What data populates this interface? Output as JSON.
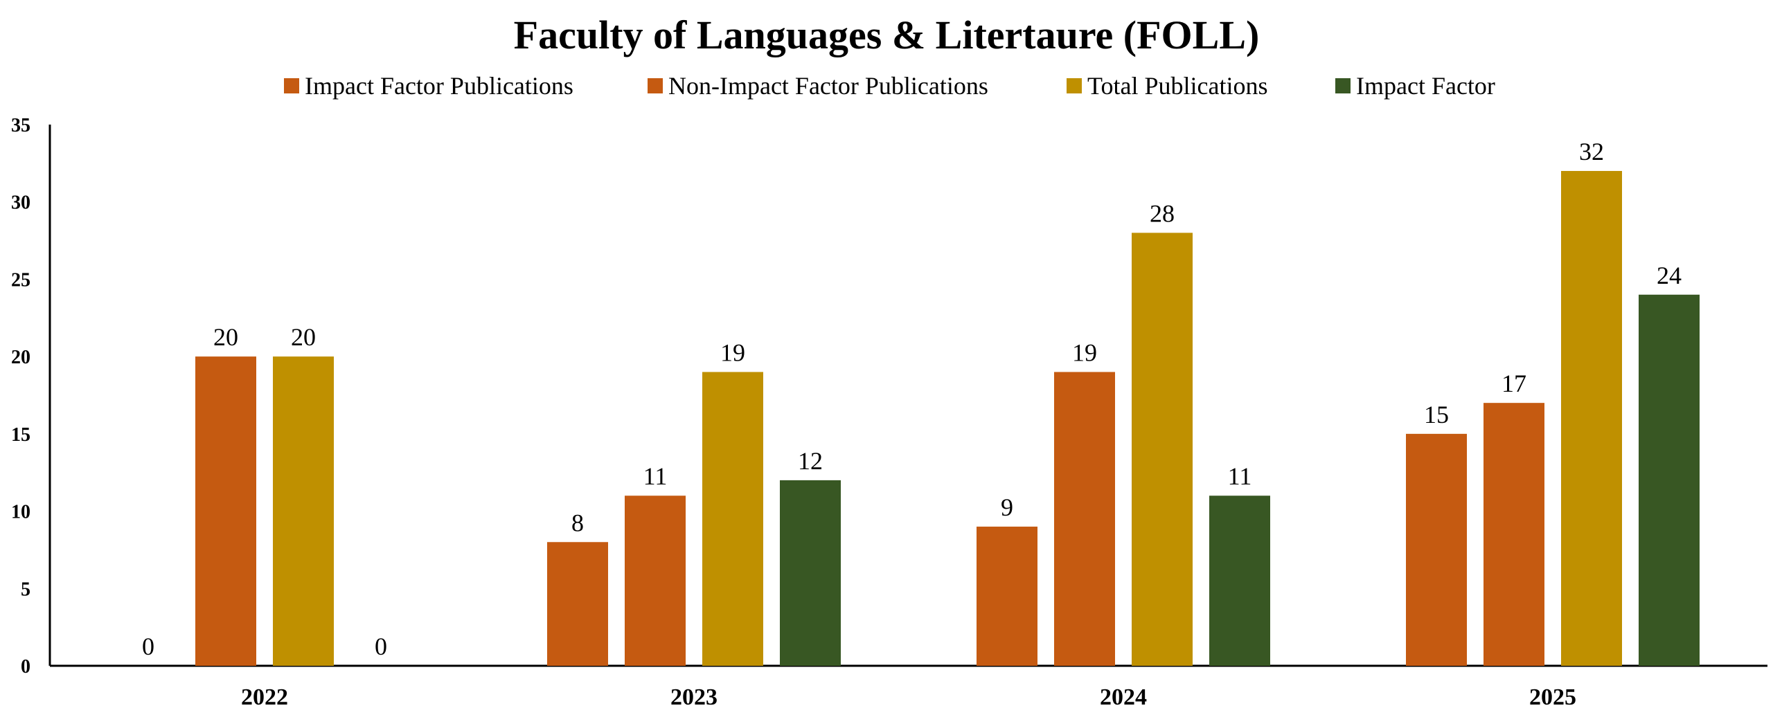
{
  "chart_data": {
    "type": "bar",
    "title": "Faculty of Languages & Litertaure (FOLL)",
    "xlabel": "",
    "ylabel": "",
    "categories": [
      "2022",
      "2023",
      "2024",
      "2025"
    ],
    "series": [
      {
        "name": "Impact Factor Publications",
        "color": "#C55A11",
        "values": [
          0,
          8,
          9,
          15
        ]
      },
      {
        "name": "Non-Impact Factor Publications",
        "color": "#C55A11",
        "values": [
          20,
          11,
          19,
          17
        ]
      },
      {
        "name": "Total Publications",
        "color": "#BF9000",
        "values": [
          20,
          19,
          28,
          32
        ]
      },
      {
        "name": "Impact Factor",
        "color": "#385723",
        "values": [
          0,
          12,
          11,
          24
        ]
      }
    ],
    "ylim": [
      0,
      35
    ],
    "yticks": [
      0,
      5,
      10,
      15,
      20,
      25,
      30,
      35
    ],
    "grid": false,
    "legend_position": "top",
    "data_labels": true
  }
}
